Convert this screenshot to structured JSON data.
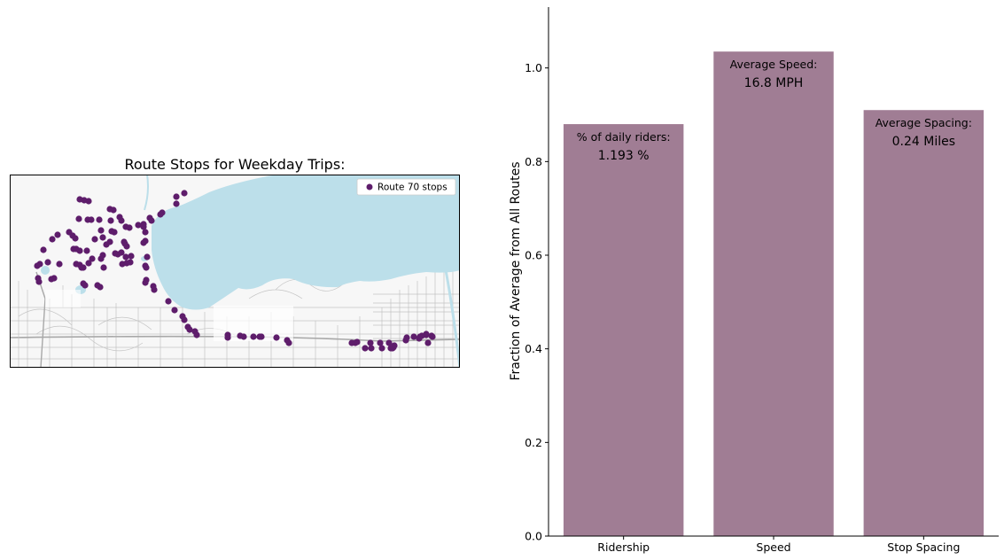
{
  "map": {
    "title": "Route Stops for Weekday Trips:",
    "legend_label": "Route 70 stops",
    "stop_color": "#5e1d6b",
    "water_color": "#bcdfea",
    "street_color": "#c4c4c4"
  },
  "chart_data": {
    "type": "bar",
    "categories": [
      "Ridership",
      "Speed",
      "Stop Spacing"
    ],
    "values": [
      0.88,
      1.035,
      0.91
    ],
    "ylabel": "Fraction of Average from All Routes",
    "xlabel": "",
    "ylim": [
      0,
      1.13
    ],
    "yticks": [
      0.0,
      0.2,
      0.4,
      0.6,
      0.8,
      1.0
    ],
    "ytick_labels": [
      "0.0",
      "0.2",
      "0.4",
      "0.6",
      "0.8",
      "1.0"
    ],
    "bar_color": "#a07d94",
    "annotations": [
      {
        "label": "% of daily riders:",
        "value": "1.193 %"
      },
      {
        "label": "Average Speed:",
        "value": "16.8 MPH"
      },
      {
        "label": "Average Spacing:",
        "value": "0.24 Miles"
      }
    ],
    "grid": false,
    "legend": "none"
  }
}
